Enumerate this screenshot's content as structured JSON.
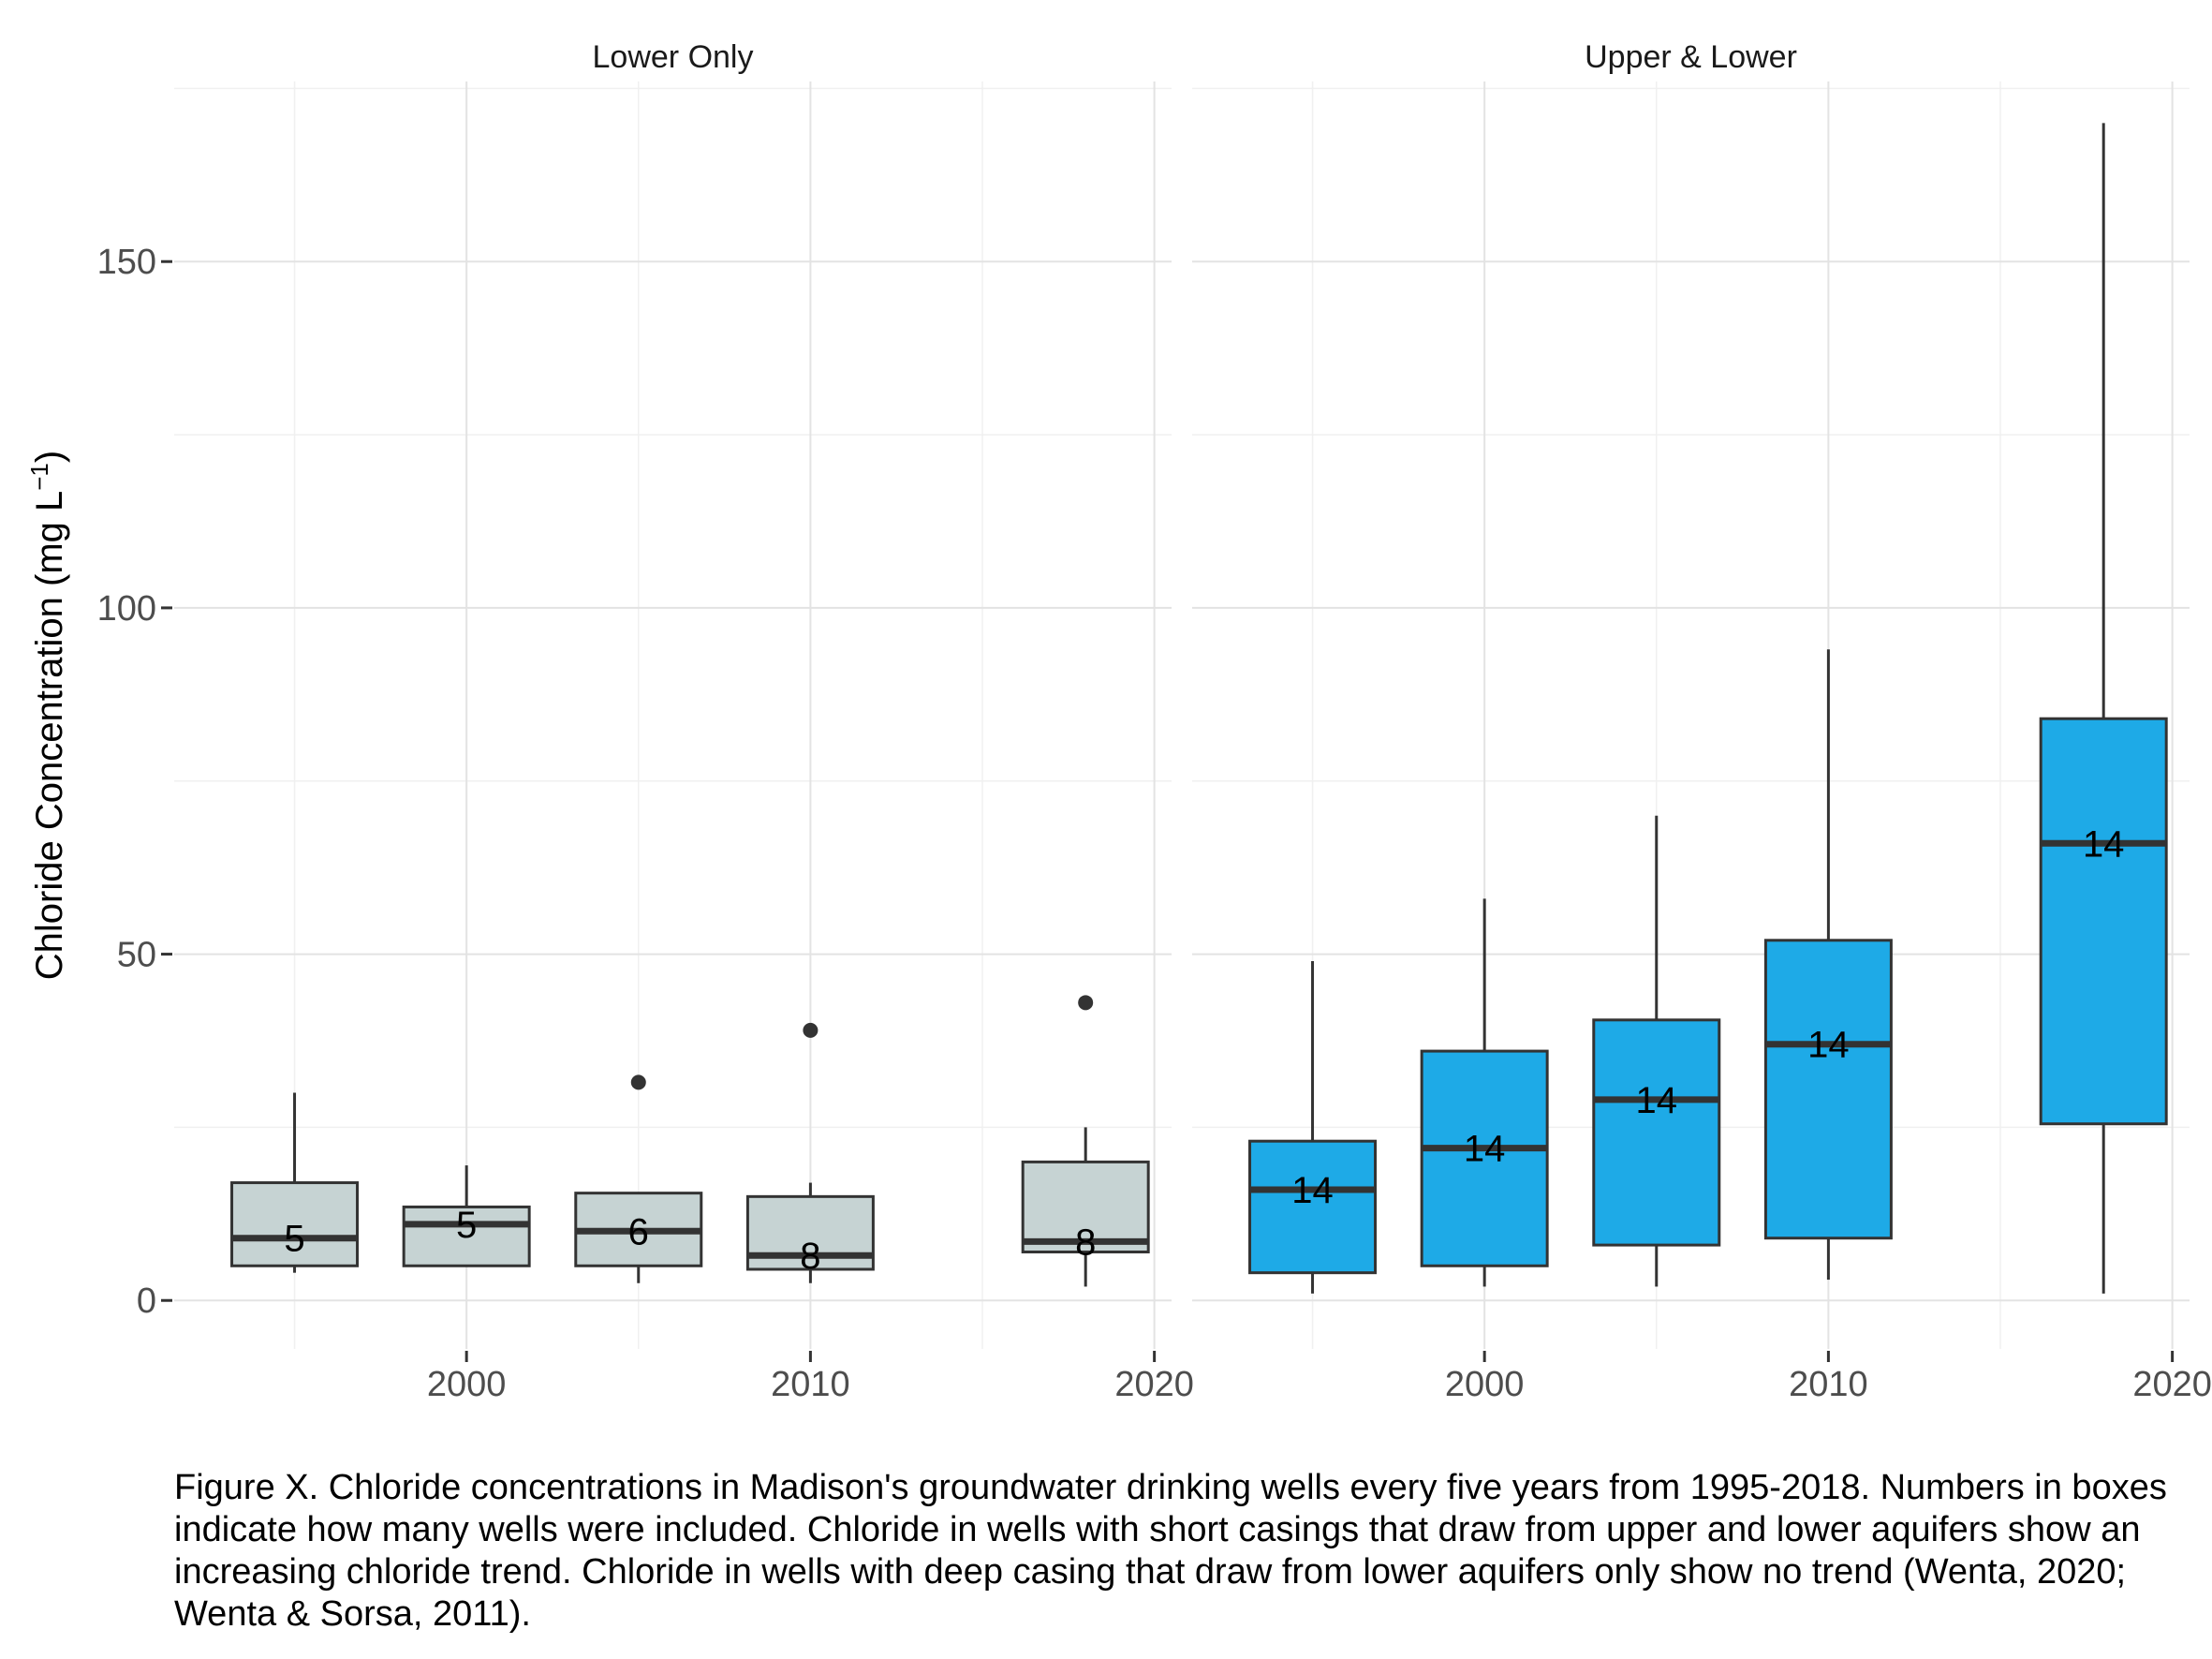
{
  "chart_data": {
    "type": "boxplot",
    "ylabel": "Chloride Concentration (mg L",
    "ylabel_sup": "−1",
    "ylabel_close": ")",
    "ylim": [
      -7,
      176
    ],
    "yticks": [
      0,
      50,
      100,
      150
    ],
    "xlim": [
      1991.5,
      2020.5
    ],
    "xticks": [
      2000,
      2010,
      2020
    ],
    "grid": true,
    "colors": {
      "lower_only_fill": "#c6d3d3",
      "upper_lower_fill": "#1eaae7",
      "outline": "#333333",
      "median": "#333333"
    },
    "panels": [
      {
        "label": "Lower Only",
        "boxes": [
          {
            "x": 1995,
            "whisker_low": 4,
            "q1": 5,
            "median": 9,
            "q3": 17,
            "whisker_high": 30,
            "n_label": "5",
            "outliers": []
          },
          {
            "x": 2000,
            "whisker_low": 5,
            "q1": 5,
            "median": 11,
            "q3": 13.5,
            "whisker_high": 19.5,
            "n_label": "5",
            "outliers": []
          },
          {
            "x": 2005,
            "whisker_low": 2.5,
            "q1": 5,
            "median": 10,
            "q3": 15.5,
            "whisker_high": 15.5,
            "n_label": "6",
            "outliers": [
              31.5
            ]
          },
          {
            "x": 2010,
            "whisker_low": 2.5,
            "q1": 4.5,
            "median": 6.5,
            "q3": 15,
            "whisker_high": 17,
            "n_label": "8",
            "outliers": [
              39
            ]
          },
          {
            "x": 2018,
            "whisker_low": 2,
            "q1": 7,
            "median": 8.5,
            "q3": 20,
            "whisker_high": 25,
            "n_label": "8",
            "outliers": [
              43
            ]
          }
        ]
      },
      {
        "label": "Upper & Lower",
        "boxes": [
          {
            "x": 1995,
            "whisker_low": 1,
            "q1": 4,
            "median": 16,
            "q3": 23,
            "whisker_high": 49,
            "n_label": "14",
            "outliers": []
          },
          {
            "x": 2000,
            "whisker_low": 2,
            "q1": 5,
            "median": 22,
            "q3": 36,
            "whisker_high": 58,
            "n_label": "14",
            "outliers": []
          },
          {
            "x": 2005,
            "whisker_low": 2,
            "q1": 8,
            "median": 29,
            "q3": 40.5,
            "whisker_high": 70,
            "n_label": "14",
            "outliers": []
          },
          {
            "x": 2010,
            "whisker_low": 3,
            "q1": 9,
            "median": 37,
            "q3": 52,
            "whisker_high": 94,
            "n_label": "14",
            "outliers": []
          },
          {
            "x": 2018,
            "whisker_low": 1,
            "q1": 25.5,
            "median": 66,
            "q3": 84,
            "whisker_high": 170,
            "n_label": "14",
            "outliers": []
          }
        ]
      }
    ]
  },
  "caption": "Figure X. Chloride concentrations in Madison's groundwater drinking wells every five years from 1995-2018. Numbers in boxes indicate how many wells were included. Chloride in wells with short casings that draw from upper and lower aquifers show an increasing chloride trend. Chloride in wells with deep casing that draw from lower aquifers only show no trend (Wenta, 2020; Wenta & Sorsa, 2011)."
}
